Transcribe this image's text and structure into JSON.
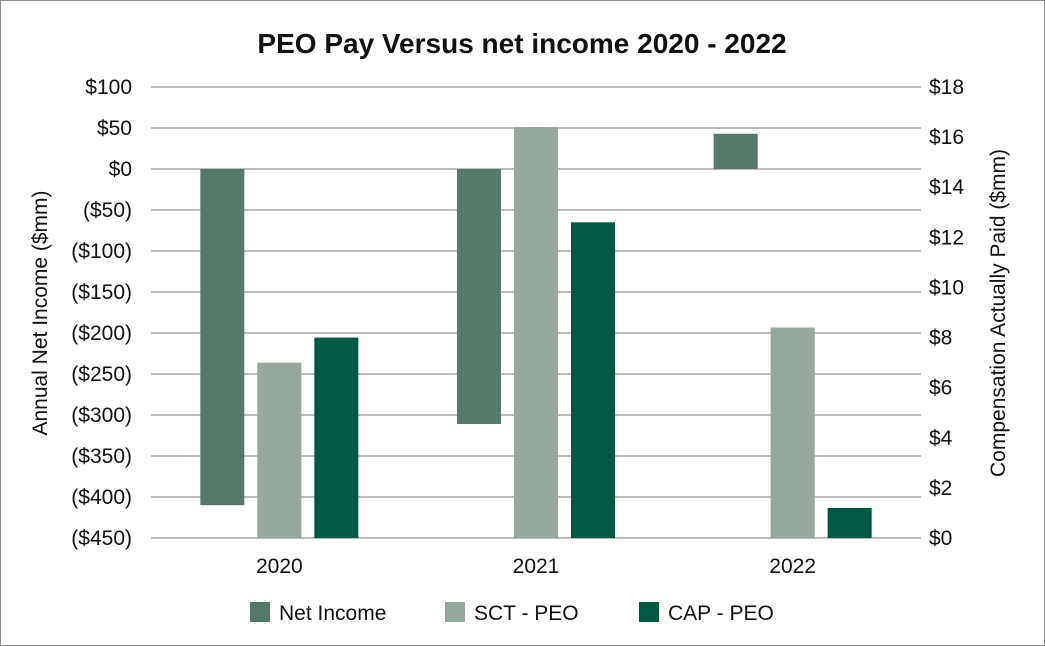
{
  "chart_data": {
    "type": "bar",
    "title": "PEO Pay Versus net income 2020 - 2022",
    "categories": [
      "2020",
      "2021",
      "2022"
    ],
    "ylabel_left": "Annual Net Income ($mm)",
    "ylabel_right": "Compensation Actually Paid ($mm)",
    "ylim_left": [
      -450,
      100
    ],
    "ylim_right": [
      0,
      18
    ],
    "left_ticks": [
      "$100",
      "$50",
      "$0",
      "($50)",
      "($100)",
      "($150)",
      "($200)",
      "($250)",
      "($300)",
      "($350)",
      "($400)",
      "($450)"
    ],
    "left_tick_values": [
      100,
      50,
      0,
      -50,
      -100,
      -150,
      -200,
      -250,
      -300,
      -350,
      -400,
      -450
    ],
    "right_ticks": [
      "$18",
      "$16",
      "$14",
      "$12",
      "$10",
      "$8",
      "$6",
      "$4",
      "$2",
      "$0"
    ],
    "right_tick_values": [
      18,
      16,
      14,
      12,
      10,
      8,
      6,
      4,
      2,
      0
    ],
    "grid": true,
    "legend_position": "bottom",
    "series": [
      {
        "name": "Net Income",
        "axis": "left",
        "color": "#56796a",
        "values": [
          -410,
          -311,
          43
        ]
      },
      {
        "name": "SCT - PEO",
        "axis": "right",
        "color": "#96a79c",
        "values": [
          7.0,
          16.4,
          8.4
        ]
      },
      {
        "name": "CAP - PEO",
        "axis": "right",
        "color": "#005a43",
        "values": [
          8.0,
          12.6,
          1.2
        ]
      }
    ]
  }
}
